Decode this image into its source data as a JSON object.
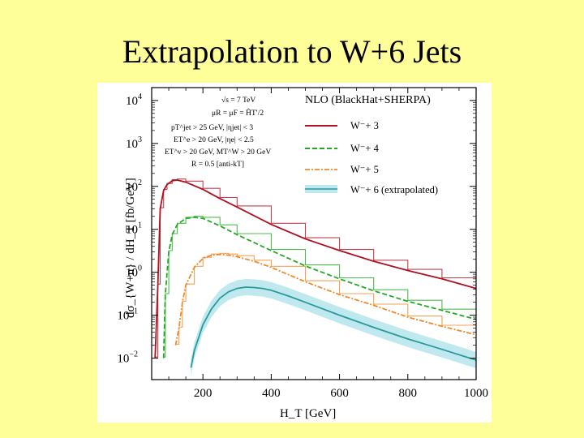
{
  "slide": {
    "title": "Extrapolation to W+6 Jets"
  },
  "chart_data": {
    "type": "line",
    "title": "NLO (BlackHat+SHERPA)",
    "xlabel": "H_T [GeV]",
    "ylabel": "dσ_{W+n} / dH_T [fb/GeV]",
    "xlim": [
      50,
      1000
    ],
    "ylim_log10": [
      -2.5,
      4.3
    ],
    "yscale": "log",
    "x_ticks": [
      200,
      400,
      600,
      800,
      1000
    ],
    "x_tick_labels": [
      "200",
      "400",
      "600",
      "800",
      "1000"
    ],
    "y_ticks_log10": [
      -2,
      -1,
      0,
      1,
      2,
      3,
      4
    ],
    "y_tick_labels": [
      "10",
      "10",
      "10",
      "10",
      "10",
      "10",
      "10"
    ],
    "y_tick_exponents": [
      "−2",
      "−1",
      "0",
      "1",
      "2",
      "3",
      "4"
    ],
    "cuts_annotation": [
      "√s = 7 TeV",
      "μR = μF = ĤT′/2",
      "pT^jet > 25 GeV, |ηjet| < 3",
      "ET^e > 20 GeV, |ηe| < 2.5",
      "ET^ν > 20 GeV, MT^W > 20 GeV",
      "R = 0.5 [anti-kT]"
    ],
    "series": [
      {
        "name": "W⁻+ 3",
        "color": "#b01020",
        "style": "solid",
        "x": [
          60,
          68,
          75,
          85,
          95,
          110,
          125,
          150,
          200,
          250,
          300,
          400,
          500,
          600,
          700,
          800,
          900,
          1000
        ],
        "y": [
          0.01,
          0.5,
          30,
          80,
          110,
          135,
          140,
          125,
          85,
          52,
          33,
          13,
          6,
          3.2,
          1.8,
          1.1,
          0.7,
          0.42
        ]
      },
      {
        "name": "W⁻+ 4",
        "color": "#22aa22",
        "style": "dashed",
        "x": [
          85,
          90,
          100,
          110,
          125,
          150,
          175,
          200,
          250,
          300,
          400,
          500,
          600,
          700,
          800,
          900,
          1000
        ],
        "y": [
          0.01,
          0.3,
          3.0,
          7.5,
          13,
          18,
          19,
          18,
          12,
          7.5,
          3.2,
          1.4,
          0.7,
          0.37,
          0.21,
          0.13,
          0.08
        ]
      },
      {
        "name": "W⁻+ 5",
        "color": "#ee8a2a",
        "style": "dashdot",
        "x": [
          120,
          130,
          140,
          150,
          175,
          200,
          225,
          250,
          275,
          300,
          350,
          400,
          500,
          600,
          700,
          800,
          900,
          1000
        ],
        "y": [
          0.02,
          0.05,
          0.2,
          0.5,
          1.3,
          2.1,
          2.5,
          2.6,
          2.5,
          2.3,
          1.8,
          1.3,
          0.6,
          0.3,
          0.17,
          0.09,
          0.055,
          0.035
        ]
      },
      {
        "name": "W⁻+ 6 (extrapolated)",
        "color": "#2a9a9a",
        "style": "solid",
        "band": true,
        "x": [
          165,
          175,
          200,
          225,
          250,
          275,
          300,
          325,
          350,
          375,
          400,
          450,
          500,
          600,
          700,
          800,
          900,
          1000
        ],
        "y": [
          0.006,
          0.015,
          0.06,
          0.14,
          0.25,
          0.35,
          0.42,
          0.45,
          0.44,
          0.42,
          0.38,
          0.28,
          0.2,
          0.1,
          0.052,
          0.028,
          0.016,
          0.009
        ]
      }
    ]
  }
}
